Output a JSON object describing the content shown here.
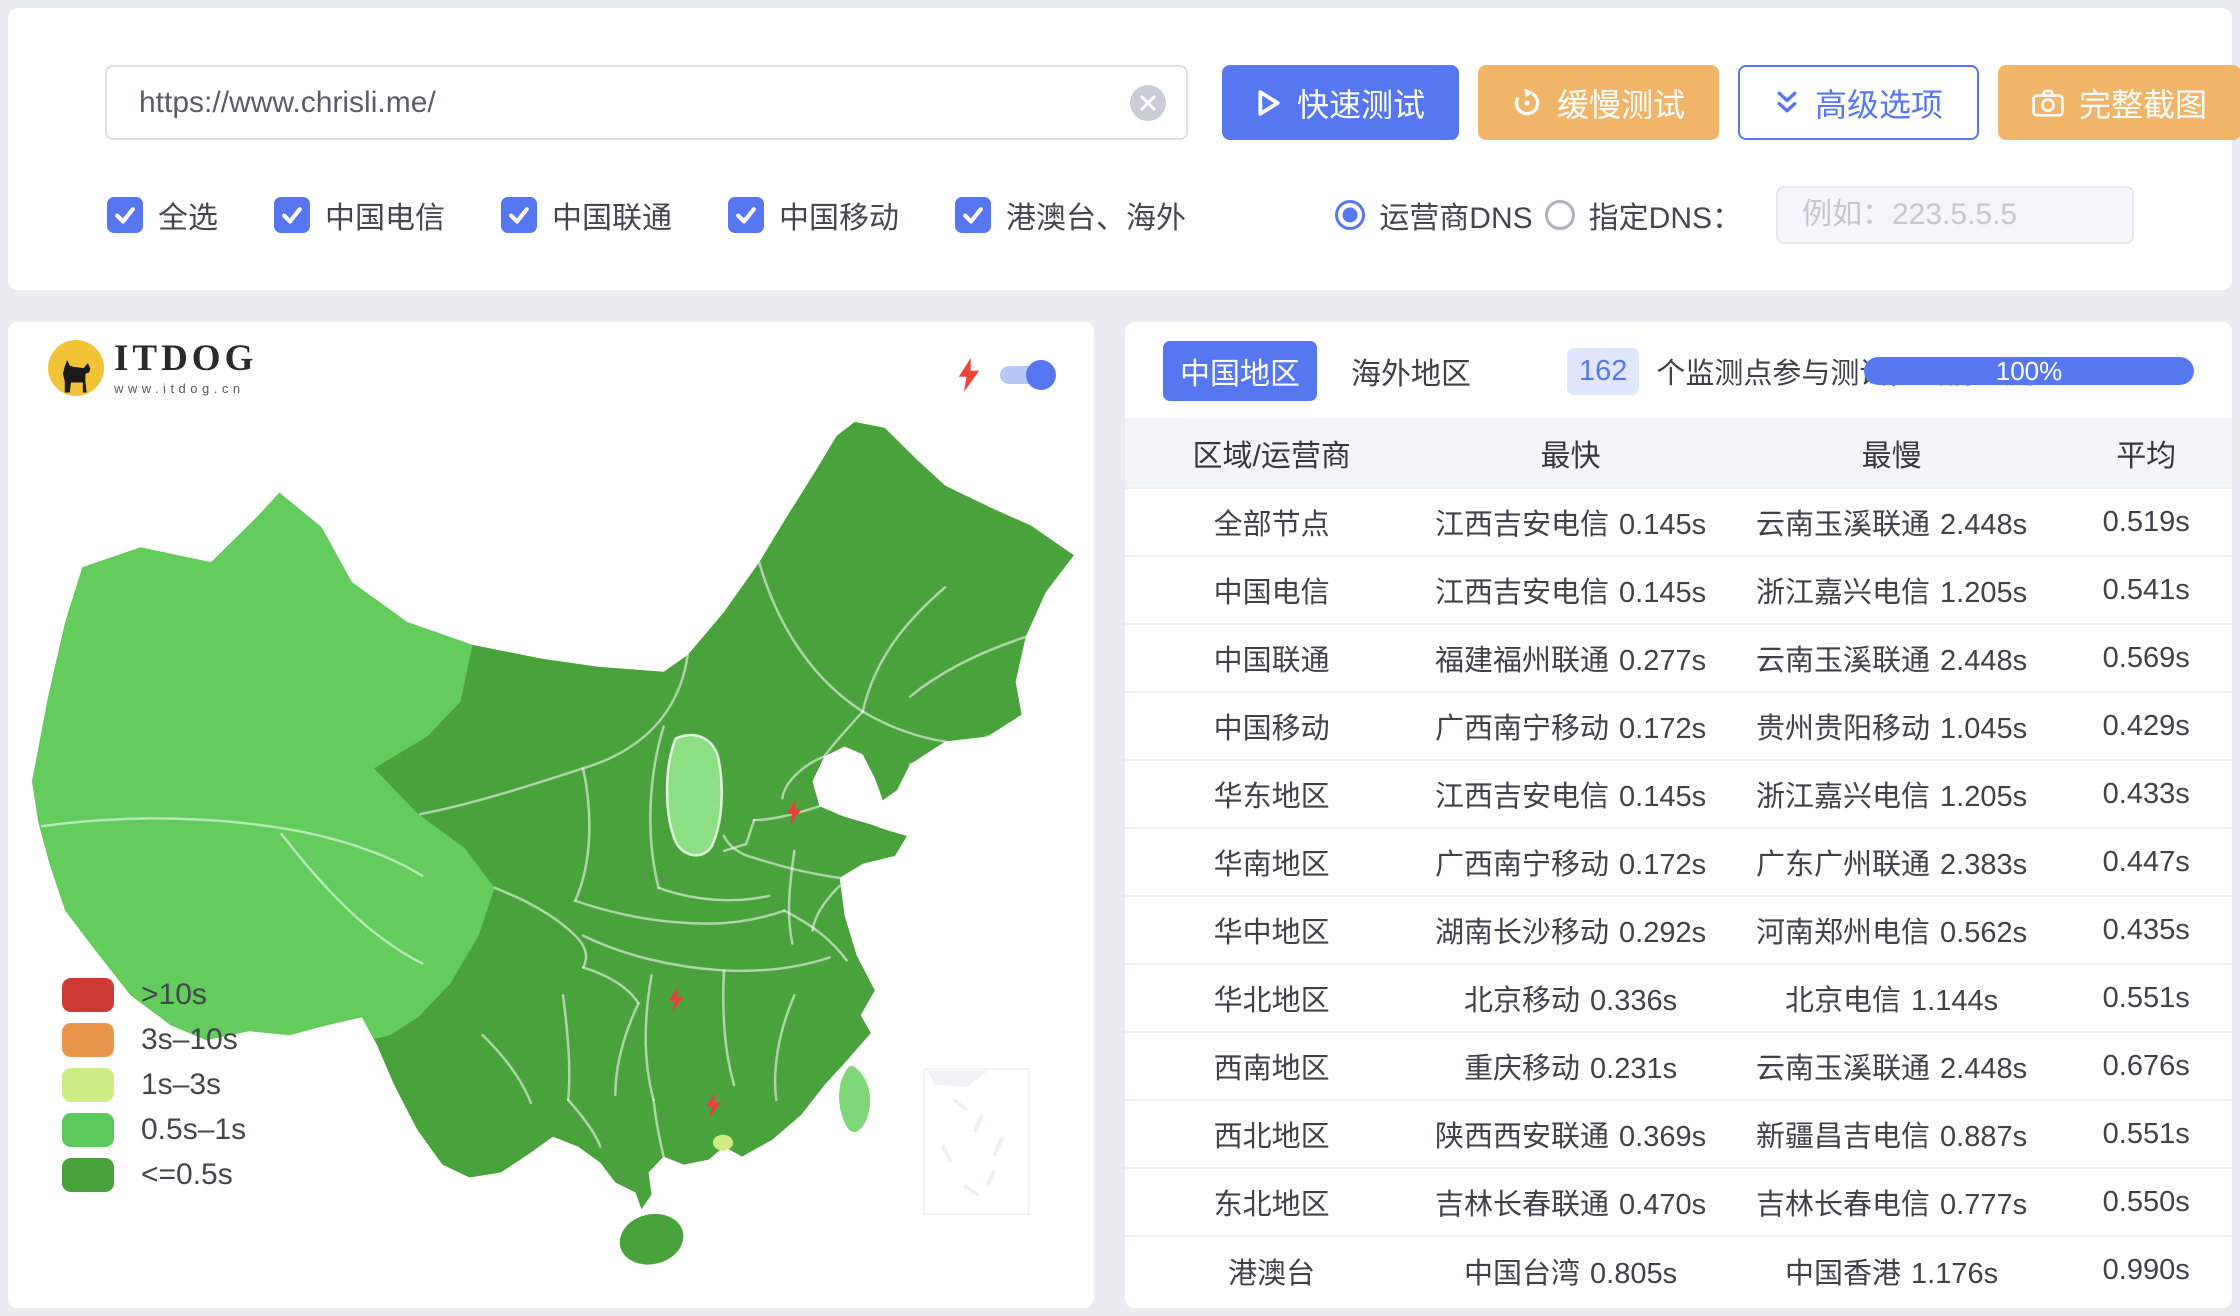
{
  "toolbar": {
    "url_input": {
      "value": "https://www.chrisli.me/",
      "clear_icon": "circle-x-icon"
    },
    "buttons": [
      {
        "label": "快速测试",
        "style": "primary",
        "icon": "play-icon"
      },
      {
        "label": "缓慢测试",
        "style": "warning",
        "icon": "slow-test-icon"
      },
      {
        "label": "高级选项",
        "style": "outline",
        "icon": "double-chevron-down-icon"
      },
      {
        "label": "完整截图",
        "style": "warning",
        "icon": "camera-icon"
      }
    ],
    "checkboxes": [
      {
        "label": "全选",
        "checked": true
      },
      {
        "label": "中国电信",
        "checked": true
      },
      {
        "label": "中国联通",
        "checked": true
      },
      {
        "label": "中国移动",
        "checked": true
      },
      {
        "label": "港澳台、海外",
        "checked": true
      }
    ],
    "dns": {
      "options": [
        {
          "label": "运营商DNS",
          "selected": true
        },
        {
          "label": "指定DNS：",
          "selected": false
        }
      ],
      "input_placeholder": "例如：223.5.5.5",
      "input_value": ""
    }
  },
  "map_panel": {
    "logo": {
      "title": "ITDOG",
      "subtitle": "www.itdog.cn",
      "icon": "dog-logo-icon"
    },
    "realtime_toggle": {
      "icon": "lightning-icon",
      "on": true
    },
    "map_colors": {
      "fill_fast": "#4aa23c",
      "fill_medium": "#63cc5c",
      "fill_light_province": "#8ce083",
      "fill_taiwan": "#7ed878",
      "fill_hongkong": "#cdec84",
      "marker_color": "#e2453a"
    },
    "legend": [
      {
        "label": ">10s",
        "color": "#ce3a31"
      },
      {
        "label": "3s–10s",
        "color": "#e8954a"
      },
      {
        "label": "1s–3s",
        "color": "#cdec84"
      },
      {
        "label": "0.5s–1s",
        "color": "#5bc95c"
      },
      {
        "label": "<=0.5s",
        "color": "#48a13a"
      }
    ]
  },
  "results_panel": {
    "tabs": [
      {
        "label": "中国地区",
        "active": true
      },
      {
        "label": "海外地区",
        "active": false
      }
    ],
    "monitor_count": "162",
    "progress_label": "个监测点参与测试，当前进度：",
    "progress_value": "100%",
    "accent_color": "#5677f0",
    "table": {
      "headers": [
        "区域/运营商",
        "最快",
        "最慢",
        "平均"
      ],
      "rows": [
        {
          "region": "全部节点",
          "fastest_node": "江西吉安电信",
          "fastest_time": "0.145s",
          "slowest_node": "云南玉溪联通",
          "slowest_time": "2.448s",
          "average": "0.519s"
        },
        {
          "region": "中国电信",
          "fastest_node": "江西吉安电信",
          "fastest_time": "0.145s",
          "slowest_node": "浙江嘉兴电信",
          "slowest_time": "1.205s",
          "average": "0.541s"
        },
        {
          "region": "中国联通",
          "fastest_node": "福建福州联通",
          "fastest_time": "0.277s",
          "slowest_node": "云南玉溪联通",
          "slowest_time": "2.448s",
          "average": "0.569s"
        },
        {
          "region": "中国移动",
          "fastest_node": "广西南宁移动",
          "fastest_time": "0.172s",
          "slowest_node": "贵州贵阳移动",
          "slowest_time": "1.045s",
          "average": "0.429s"
        },
        {
          "region": "华东地区",
          "fastest_node": "江西吉安电信",
          "fastest_time": "0.145s",
          "slowest_node": "浙江嘉兴电信",
          "slowest_time": "1.205s",
          "average": "0.433s"
        },
        {
          "region": "华南地区",
          "fastest_node": "广西南宁移动",
          "fastest_time": "0.172s",
          "slowest_node": "广东广州联通",
          "slowest_time": "2.383s",
          "average": "0.447s"
        },
        {
          "region": "华中地区",
          "fastest_node": "湖南长沙移动",
          "fastest_time": "0.292s",
          "slowest_node": "河南郑州电信",
          "slowest_time": "0.562s",
          "average": "0.435s"
        },
        {
          "region": "华北地区",
          "fastest_node": "北京移动",
          "fastest_time": "0.336s",
          "slowest_node": "北京电信",
          "slowest_time": "1.144s",
          "average": "0.551s"
        },
        {
          "region": "西南地区",
          "fastest_node": "重庆移动",
          "fastest_time": "0.231s",
          "slowest_node": "云南玉溪联通",
          "slowest_time": "2.448s",
          "average": "0.676s"
        },
        {
          "region": "西北地区",
          "fastest_node": "陕西西安联通",
          "fastest_time": "0.369s",
          "slowest_node": "新疆昌吉电信",
          "slowest_time": "0.887s",
          "average": "0.551s"
        },
        {
          "region": "东北地区",
          "fastest_node": "吉林长春联通",
          "fastest_time": "0.470s",
          "slowest_node": "吉林长春电信",
          "slowest_time": "0.777s",
          "average": "0.550s"
        },
        {
          "region": "港澳台",
          "fastest_node": "中国台湾",
          "fastest_time": "0.805s",
          "slowest_node": "中国香港",
          "slowest_time": "1.176s",
          "average": "0.990s"
        }
      ]
    }
  }
}
